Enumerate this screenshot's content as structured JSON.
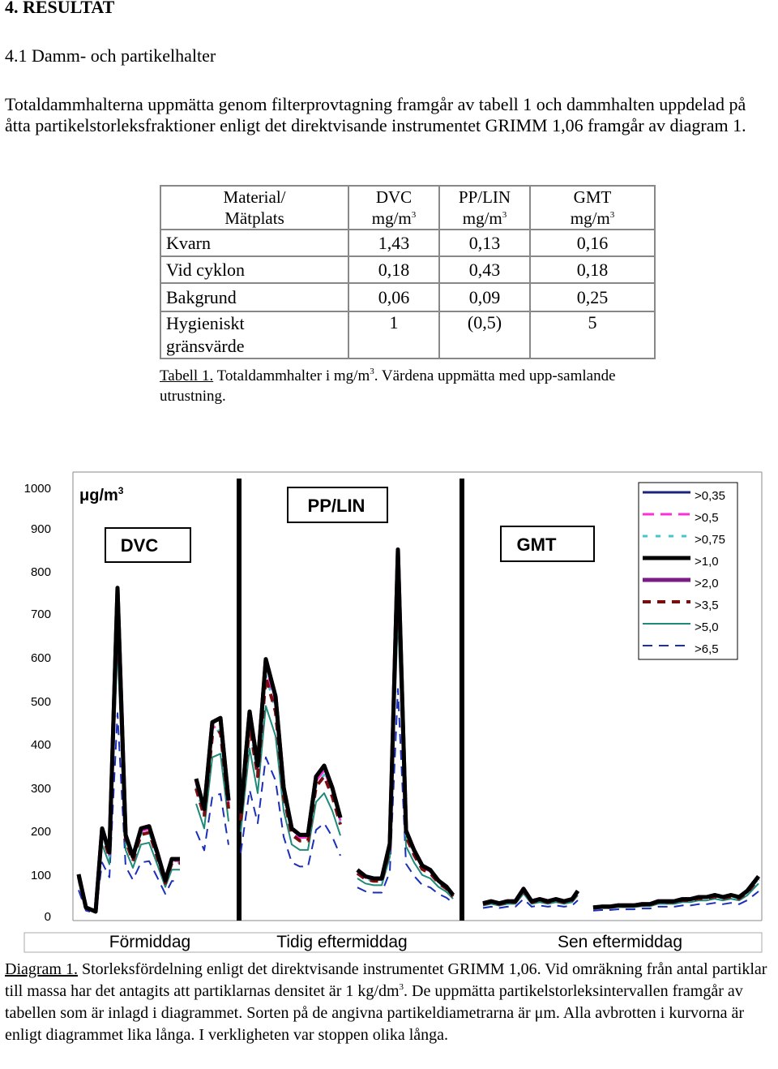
{
  "heading": "4. RESULTAT",
  "subheading": "4.1 Damm- och partikelhalter",
  "intro": "Totaldammhalterna uppmätta genom filterprovtagning framgår av tabell 1 och dammhalten uppdelad på åtta partikelstorleksfraktioner enligt det direktvisande instrumentet GRIMM 1,06 framgår av diagram 1.",
  "table": {
    "header": {
      "col0_l1": "Material/",
      "col0_l2": "Mätplats",
      "col1_l1": "DVC",
      "col2_l1": "PP/LIN",
      "col3_l1": "GMT",
      "unit": "mg/m",
      "unit_sup": "3"
    },
    "rows": [
      {
        "label": "Kvarn",
        "label2": "",
        "v1": "1,43",
        "v2": "0,13",
        "v3": "0,16"
      },
      {
        "label": "Vid cyklon",
        "label2": "",
        "v1": "0,18",
        "v2": "0,43",
        "v3": "0,18"
      },
      {
        "label": "Bakgrund",
        "label2": "",
        "v1": "0,06",
        "v2": "0,09",
        "v3": "0,25"
      },
      {
        "label": "Hygieniskt",
        "label2": "gränsvärde",
        "v1": "1",
        "v2": "(0,5)",
        "v3": "5"
      }
    ]
  },
  "table_caption": {
    "ref": "Tabell 1.",
    "text_a": " Totaldammhalter i mg/m",
    "sup": "3",
    "text_b": ". Värdena uppmätta med upp-samlande utrustning."
  },
  "chart_data": {
    "type": "line",
    "unit_label": "μg/m",
    "unit_sup": "3",
    "section_labels": [
      "DVC",
      "PP/LIN",
      "GMT"
    ],
    "x_labels": [
      "Förmiddag",
      "Tidig eftermiddag",
      "Sen eftermiddag"
    ],
    "y_ticks": [
      "1000",
      "900",
      "800",
      "700",
      "600",
      "500",
      "400",
      "300",
      "200",
      "100",
      "0"
    ],
    "legend": [
      {
        "name": ">0,35",
        "color": "#1a237e",
        "dash": ""
      },
      {
        "name": ">0,5",
        "color": "#ff2fd6",
        "dash": "14,8"
      },
      {
        "name": ">0,75",
        "color": "#3fc9d6",
        "dash": "6,10"
      },
      {
        "name": ">1,0",
        "color": "#000000",
        "dash": ""
      },
      {
        "name": ">2,0",
        "color": "#7a1b86",
        "dash": ""
      },
      {
        "name": ">3,5",
        "color": "#7a0e0e",
        "dash": "10,8"
      },
      {
        "name": ">5,0",
        "color": "#1f8a7a",
        "dash": ""
      },
      {
        "name": ">6,5",
        "color": "#1a2fb8",
        "dash": "12,8"
      }
    ],
    "segments": [
      {
        "x": [
          97,
          106,
          118,
          126,
          135,
          145,
          155,
          164,
          174,
          184,
          194,
          204,
          212,
          222
        ],
        "y": [
          100,
          20,
          10,
          205,
          150,
          760,
          190,
          140,
          205,
          210,
          150,
          85,
          135,
          135
        ]
      },
      {
        "x": [
          242,
          252,
          262,
          272,
          282
        ],
        "y": [
          320,
          250,
          450,
          460,
          270
        ]
      },
      {
        "x": [
          297,
          308,
          318,
          328,
          340,
          350,
          360,
          370,
          380,
          390,
          400,
          410,
          420
        ],
        "y": [
          240,
          475,
          350,
          595,
          510,
          300,
          205,
          190,
          190,
          325,
          350,
          300,
          230
        ]
      },
      {
        "x": [
          441,
          451,
          461,
          471,
          481,
          491,
          501,
          511,
          521,
          531,
          541,
          551,
          559
        ],
        "y": [
          110,
          95,
          90,
          90,
          170,
          850,
          200,
          155,
          120,
          110,
          85,
          70,
          50
        ]
      },
      {
        "x": [
          596,
          606,
          616,
          626,
          636,
          646,
          656,
          666,
          676,
          686,
          696,
          706,
          713
        ],
        "y": [
          30,
          35,
          30,
          35,
          35,
          65,
          35,
          40,
          35,
          40,
          35,
          40,
          60
        ]
      },
      {
        "x": [
          732,
          742,
          752,
          762,
          772,
          782,
          792,
          802,
          812,
          822,
          832,
          842,
          852,
          862,
          872,
          882,
          892,
          902,
          912,
          922,
          936
        ],
        "y": [
          20,
          22,
          22,
          25,
          25,
          25,
          28,
          28,
          35,
          35,
          35,
          40,
          40,
          45,
          45,
          50,
          45,
          50,
          45,
          60,
          95
        ]
      }
    ],
    "series_ratio": [
      1.0,
      0.97,
      0.94,
      1.0,
      1.0,
      0.93,
      0.82,
      0.62
    ],
    "ylim": [
      0,
      1000
    ],
    "grid": false,
    "legend_position": "top-right"
  },
  "diagram_caption": {
    "ref": "Diagram 1.",
    "text_a": " Storleksfördelning enligt det direktvisande instrumentet GRIMM 1,06. Vid omräkning från antal partiklar till massa har det antagits att partiklarnas densitet är 1 kg/dm",
    "sup": "3",
    "text_b": ". De uppmätta partikelstorleksintervallen framgår av tabellen som är inlagd i diagrammet. Sorten på de angivna partikeldiametrarna är μm. Alla avbrotten i kurvorna är enligt diagrammet lika långa. I verkligheten var stoppen olika långa."
  }
}
